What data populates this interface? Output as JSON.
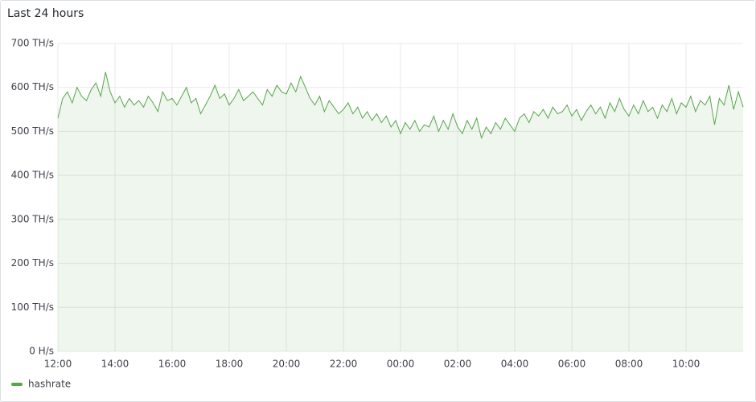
{
  "chart_data": {
    "type": "line",
    "title": "Last 24 hours",
    "categories": [
      "12:00",
      "12:10",
      "12:20",
      "12:30",
      "12:40",
      "12:50",
      "13:00",
      "13:10",
      "13:20",
      "13:30",
      "13:40",
      "13:50",
      "14:00",
      "14:10",
      "14:20",
      "14:30",
      "14:40",
      "14:50",
      "15:00",
      "15:10",
      "15:20",
      "15:30",
      "15:40",
      "15:50",
      "16:00",
      "16:10",
      "16:20",
      "16:30",
      "16:40",
      "16:50",
      "17:00",
      "17:10",
      "17:20",
      "17:30",
      "17:40",
      "17:50",
      "18:00",
      "18:10",
      "18:20",
      "18:30",
      "18:40",
      "18:50",
      "19:00",
      "19:10",
      "19:20",
      "19:30",
      "19:40",
      "19:50",
      "20:00",
      "20:10",
      "20:20",
      "20:30",
      "20:40",
      "20:50",
      "21:00",
      "21:10",
      "21:20",
      "21:30",
      "21:40",
      "21:50",
      "22:00",
      "22:10",
      "22:20",
      "22:30",
      "22:40",
      "22:50",
      "23:00",
      "23:10",
      "23:20",
      "23:30",
      "23:40",
      "23:50",
      "00:00",
      "00:10",
      "00:20",
      "00:30",
      "00:40",
      "00:50",
      "01:00",
      "01:10",
      "01:20",
      "01:30",
      "01:40",
      "01:50",
      "02:00",
      "02:10",
      "02:20",
      "02:30",
      "02:40",
      "02:50",
      "03:00",
      "03:10",
      "03:20",
      "03:30",
      "03:40",
      "03:50",
      "04:00",
      "04:10",
      "04:20",
      "04:30",
      "04:40",
      "04:50",
      "05:00",
      "05:10",
      "05:20",
      "05:30",
      "05:40",
      "05:50",
      "06:00",
      "06:10",
      "06:20",
      "06:30",
      "06:40",
      "06:50",
      "07:00",
      "07:10",
      "07:20",
      "07:30",
      "07:40",
      "07:50",
      "08:00",
      "08:10",
      "08:20",
      "08:30",
      "08:40",
      "08:50",
      "09:00",
      "09:10",
      "09:20",
      "09:30",
      "09:40",
      "09:50",
      "10:00",
      "10:10",
      "10:20",
      "10:30",
      "10:40",
      "10:50",
      "11:00",
      "11:10",
      "11:20",
      "11:30",
      "11:40",
      "11:50",
      "12:00"
    ],
    "series": [
      {
        "name": "hashrate",
        "color": "#56a64b",
        "values": [
          530,
          575,
          590,
          565,
          600,
          580,
          570,
          595,
          610,
          580,
          635,
          590,
          565,
          580,
          555,
          575,
          560,
          570,
          555,
          580,
          565,
          545,
          590,
          570,
          575,
          560,
          580,
          600,
          565,
          575,
          540,
          560,
          580,
          605,
          575,
          585,
          560,
          575,
          595,
          570,
          580,
          590,
          575,
          560,
          595,
          580,
          605,
          590,
          585,
          610,
          590,
          625,
          600,
          575,
          560,
          580,
          545,
          570,
          555,
          540,
          550,
          565,
          540,
          555,
          530,
          545,
          525,
          540,
          520,
          535,
          510,
          525,
          495,
          520,
          505,
          525,
          500,
          515,
          510,
          535,
          500,
          525,
          505,
          540,
          510,
          495,
          525,
          505,
          530,
          485,
          510,
          495,
          520,
          505,
          530,
          515,
          500,
          530,
          540,
          520,
          545,
          535,
          550,
          530,
          555,
          540,
          545,
          560,
          535,
          550,
          525,
          545,
          560,
          540,
          555,
          530,
          565,
          545,
          575,
          550,
          535,
          560,
          540,
          570,
          545,
          555,
          530,
          560,
          545,
          575,
          540,
          565,
          555,
          580,
          545,
          570,
          560,
          580,
          515,
          575,
          560,
          605,
          550,
          590,
          555
        ]
      }
    ],
    "xticks": [
      "14:00",
      "16:00",
      "18:00",
      "20:00",
      "22:00",
      "00:00",
      "02:00",
      "04:00",
      "06:00",
      "08:00",
      "10:00",
      "12:00"
    ],
    "ylim": [
      0,
      700
    ],
    "yticks": [
      {
        "value": 0,
        "label": "0 H/s"
      },
      {
        "value": 100,
        "label": "100 TH/s"
      },
      {
        "value": 200,
        "label": "200 TH/s"
      },
      {
        "value": 300,
        "label": "300 TH/s"
      },
      {
        "value": 400,
        "label": "400 TH/s"
      },
      {
        "value": 500,
        "label": "500 TH/s"
      },
      {
        "value": 600,
        "label": "600 TH/s"
      },
      {
        "value": 700,
        "label": "700 TH/s"
      }
    ],
    "grid": true
  }
}
